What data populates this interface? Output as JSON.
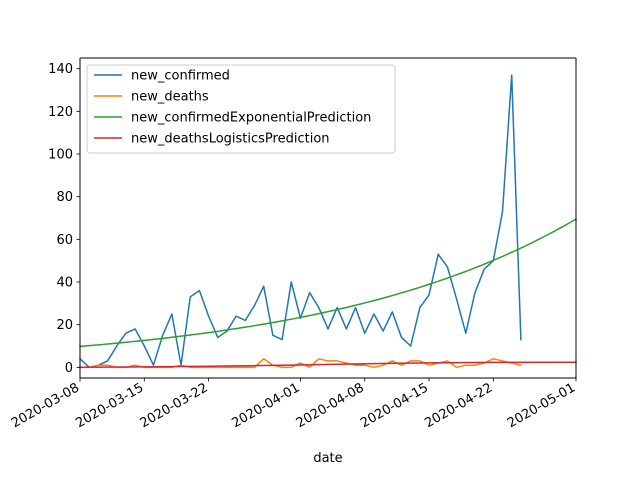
{
  "chart_data": {
    "type": "line",
    "title": "",
    "xlabel": "date",
    "ylabel": "",
    "xlim": [
      "2020-03-08",
      "2020-05-01"
    ],
    "ylim": [
      -5,
      145
    ],
    "x_ticks": [
      "2020-03-08",
      "2020-03-15",
      "2020-03-22",
      "2020-04-01",
      "2020-04-08",
      "2020-04-15",
      "2020-04-22",
      "2020-05-01"
    ],
    "y_ticks": [
      0,
      20,
      40,
      60,
      80,
      100,
      120,
      140
    ],
    "grid": false,
    "legend_position": "upper-left",
    "series": [
      {
        "name": "new_confirmed",
        "color": "#1f77b4",
        "points": [
          [
            "2020-03-08",
            4
          ],
          [
            "2020-03-09",
            0
          ],
          [
            "2020-03-10",
            1
          ],
          [
            "2020-03-11",
            3
          ],
          [
            "2020-03-12",
            10
          ],
          [
            "2020-03-13",
            16
          ],
          [
            "2020-03-14",
            18
          ],
          [
            "2020-03-15",
            10
          ],
          [
            "2020-03-16",
            1
          ],
          [
            "2020-03-17",
            15
          ],
          [
            "2020-03-18",
            25
          ],
          [
            "2020-03-19",
            1
          ],
          [
            "2020-03-20",
            33
          ],
          [
            "2020-03-21",
            36
          ],
          [
            "2020-03-22",
            24
          ],
          [
            "2020-03-23",
            14
          ],
          [
            "2020-03-24",
            17
          ],
          [
            "2020-03-25",
            24
          ],
          [
            "2020-03-26",
            22
          ],
          [
            "2020-03-27",
            29
          ],
          [
            "2020-03-28",
            38
          ],
          [
            "2020-03-29",
            15
          ],
          [
            "2020-03-30",
            13
          ],
          [
            "2020-03-31",
            40
          ],
          [
            "2020-04-01",
            23
          ],
          [
            "2020-04-02",
            35
          ],
          [
            "2020-04-03",
            28
          ],
          [
            "2020-04-04",
            18
          ],
          [
            "2020-04-05",
            28
          ],
          [
            "2020-04-06",
            18
          ],
          [
            "2020-04-07",
            28
          ],
          [
            "2020-04-08",
            16
          ],
          [
            "2020-04-09",
            25
          ],
          [
            "2020-04-10",
            17
          ],
          [
            "2020-04-11",
            26
          ],
          [
            "2020-04-12",
            14
          ],
          [
            "2020-04-13",
            10
          ],
          [
            "2020-04-14",
            28
          ],
          [
            "2020-04-15",
            34
          ],
          [
            "2020-04-16",
            53
          ],
          [
            "2020-04-17",
            47
          ],
          [
            "2020-04-18",
            32
          ],
          [
            "2020-04-19",
            16
          ],
          [
            "2020-04-20",
            35
          ],
          [
            "2020-04-21",
            46
          ],
          [
            "2020-04-22",
            50
          ],
          [
            "2020-04-23",
            73
          ],
          [
            "2020-04-24",
            137
          ],
          [
            "2020-04-25",
            13
          ]
        ]
      },
      {
        "name": "new_deaths",
        "color": "#ff7f0e",
        "points": [
          [
            "2020-03-08",
            0
          ],
          [
            "2020-03-09",
            0
          ],
          [
            "2020-03-10",
            1
          ],
          [
            "2020-03-11",
            1
          ],
          [
            "2020-03-12",
            0
          ],
          [
            "2020-03-13",
            0
          ],
          [
            "2020-03-14",
            1
          ],
          [
            "2020-03-15",
            0
          ],
          [
            "2020-03-16",
            0
          ],
          [
            "2020-03-17",
            0
          ],
          [
            "2020-03-18",
            0
          ],
          [
            "2020-03-19",
            1
          ],
          [
            "2020-03-20",
            0
          ],
          [
            "2020-03-21",
            0
          ],
          [
            "2020-03-22",
            0
          ],
          [
            "2020-03-23",
            0
          ],
          [
            "2020-03-24",
            0
          ],
          [
            "2020-03-25",
            0
          ],
          [
            "2020-03-26",
            0
          ],
          [
            "2020-03-27",
            0
          ],
          [
            "2020-03-28",
            4
          ],
          [
            "2020-03-29",
            1
          ],
          [
            "2020-03-30",
            0
          ],
          [
            "2020-03-31",
            0
          ],
          [
            "2020-04-01",
            2
          ],
          [
            "2020-04-02",
            0
          ],
          [
            "2020-04-03",
            4
          ],
          [
            "2020-04-04",
            3
          ],
          [
            "2020-04-05",
            3
          ],
          [
            "2020-04-06",
            2
          ],
          [
            "2020-04-07",
            1
          ],
          [
            "2020-04-08",
            1
          ],
          [
            "2020-04-09",
            0
          ],
          [
            "2020-04-10",
            1
          ],
          [
            "2020-04-11",
            3
          ],
          [
            "2020-04-12",
            1
          ],
          [
            "2020-04-13",
            3
          ],
          [
            "2020-04-14",
            3
          ],
          [
            "2020-04-15",
            1
          ],
          [
            "2020-04-16",
            2
          ],
          [
            "2020-04-17",
            3
          ],
          [
            "2020-04-18",
            0
          ],
          [
            "2020-04-19",
            1
          ],
          [
            "2020-04-20",
            1
          ],
          [
            "2020-04-21",
            2
          ],
          [
            "2020-04-22",
            4
          ],
          [
            "2020-04-23",
            3
          ],
          [
            "2020-04-24",
            2
          ],
          [
            "2020-04-25",
            1
          ]
        ]
      },
      {
        "name": "new_confirmedExponentialPrediction",
        "color": "#2ca02c",
        "points": [
          [
            "2020-03-08",
            9.8
          ],
          [
            "2020-03-15",
            11.3
          ],
          [
            "2020-03-22",
            14.2
          ],
          [
            "2020-04-01",
            21.5
          ],
          [
            "2020-04-08",
            28.3
          ],
          [
            "2020-04-15",
            37.4
          ],
          [
            "2020-04-22",
            50.8
          ],
          [
            "2020-05-01",
            69.5
          ]
        ]
      },
      {
        "name": "new_deathsLogisticsPrediction",
        "color": "#d62728",
        "points": [
          [
            "2020-03-08",
            0.05
          ],
          [
            "2020-03-15",
            0.2
          ],
          [
            "2020-03-22",
            0.5
          ],
          [
            "2020-04-01",
            1.1
          ],
          [
            "2020-04-08",
            1.7
          ],
          [
            "2020-04-15",
            2.1
          ],
          [
            "2020-04-22",
            2.3
          ],
          [
            "2020-05-01",
            2.4
          ]
        ]
      }
    ]
  }
}
